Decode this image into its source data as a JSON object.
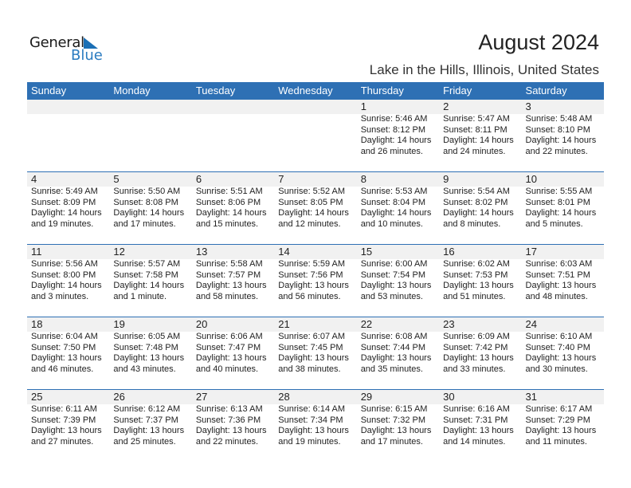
{
  "logo": {
    "line1": "General",
    "line2": "Blue"
  },
  "header": {
    "title": "August 2024",
    "location": "Lake in the Hills, Illinois, United States"
  },
  "colors": {
    "header_bg": "#2e70b4",
    "date_strip": "#f1f1f1",
    "logo_blue": "#2a7bc0"
  },
  "weekdays": [
    "Sunday",
    "Monday",
    "Tuesday",
    "Wednesday",
    "Thursday",
    "Friday",
    "Saturday"
  ],
  "weeks": [
    [
      null,
      null,
      null,
      null,
      {
        "day": "1",
        "sunrise": "Sunrise: 5:46 AM",
        "sunset": "Sunset: 8:12 PM",
        "daylight1": "Daylight: 14 hours",
        "daylight2": "and 26 minutes."
      },
      {
        "day": "2",
        "sunrise": "Sunrise: 5:47 AM",
        "sunset": "Sunset: 8:11 PM",
        "daylight1": "Daylight: 14 hours",
        "daylight2": "and 24 minutes."
      },
      {
        "day": "3",
        "sunrise": "Sunrise: 5:48 AM",
        "sunset": "Sunset: 8:10 PM",
        "daylight1": "Daylight: 14 hours",
        "daylight2": "and 22 minutes."
      }
    ],
    [
      {
        "day": "4",
        "sunrise": "Sunrise: 5:49 AM",
        "sunset": "Sunset: 8:09 PM",
        "daylight1": "Daylight: 14 hours",
        "daylight2": "and 19 minutes."
      },
      {
        "day": "5",
        "sunrise": "Sunrise: 5:50 AM",
        "sunset": "Sunset: 8:08 PM",
        "daylight1": "Daylight: 14 hours",
        "daylight2": "and 17 minutes."
      },
      {
        "day": "6",
        "sunrise": "Sunrise: 5:51 AM",
        "sunset": "Sunset: 8:06 PM",
        "daylight1": "Daylight: 14 hours",
        "daylight2": "and 15 minutes."
      },
      {
        "day": "7",
        "sunrise": "Sunrise: 5:52 AM",
        "sunset": "Sunset: 8:05 PM",
        "daylight1": "Daylight: 14 hours",
        "daylight2": "and 12 minutes."
      },
      {
        "day": "8",
        "sunrise": "Sunrise: 5:53 AM",
        "sunset": "Sunset: 8:04 PM",
        "daylight1": "Daylight: 14 hours",
        "daylight2": "and 10 minutes."
      },
      {
        "day": "9",
        "sunrise": "Sunrise: 5:54 AM",
        "sunset": "Sunset: 8:02 PM",
        "daylight1": "Daylight: 14 hours",
        "daylight2": "and 8 minutes."
      },
      {
        "day": "10",
        "sunrise": "Sunrise: 5:55 AM",
        "sunset": "Sunset: 8:01 PM",
        "daylight1": "Daylight: 14 hours",
        "daylight2": "and 5 minutes."
      }
    ],
    [
      {
        "day": "11",
        "sunrise": "Sunrise: 5:56 AM",
        "sunset": "Sunset: 8:00 PM",
        "daylight1": "Daylight: 14 hours",
        "daylight2": "and 3 minutes."
      },
      {
        "day": "12",
        "sunrise": "Sunrise: 5:57 AM",
        "sunset": "Sunset: 7:58 PM",
        "daylight1": "Daylight: 14 hours",
        "daylight2": "and 1 minute."
      },
      {
        "day": "13",
        "sunrise": "Sunrise: 5:58 AM",
        "sunset": "Sunset: 7:57 PM",
        "daylight1": "Daylight: 13 hours",
        "daylight2": "and 58 minutes."
      },
      {
        "day": "14",
        "sunrise": "Sunrise: 5:59 AM",
        "sunset": "Sunset: 7:56 PM",
        "daylight1": "Daylight: 13 hours",
        "daylight2": "and 56 minutes."
      },
      {
        "day": "15",
        "sunrise": "Sunrise: 6:00 AM",
        "sunset": "Sunset: 7:54 PM",
        "daylight1": "Daylight: 13 hours",
        "daylight2": "and 53 minutes."
      },
      {
        "day": "16",
        "sunrise": "Sunrise: 6:02 AM",
        "sunset": "Sunset: 7:53 PM",
        "daylight1": "Daylight: 13 hours",
        "daylight2": "and 51 minutes."
      },
      {
        "day": "17",
        "sunrise": "Sunrise: 6:03 AM",
        "sunset": "Sunset: 7:51 PM",
        "daylight1": "Daylight: 13 hours",
        "daylight2": "and 48 minutes."
      }
    ],
    [
      {
        "day": "18",
        "sunrise": "Sunrise: 6:04 AM",
        "sunset": "Sunset: 7:50 PM",
        "daylight1": "Daylight: 13 hours",
        "daylight2": "and 46 minutes."
      },
      {
        "day": "19",
        "sunrise": "Sunrise: 6:05 AM",
        "sunset": "Sunset: 7:48 PM",
        "daylight1": "Daylight: 13 hours",
        "daylight2": "and 43 minutes."
      },
      {
        "day": "20",
        "sunrise": "Sunrise: 6:06 AM",
        "sunset": "Sunset: 7:47 PM",
        "daylight1": "Daylight: 13 hours",
        "daylight2": "and 40 minutes."
      },
      {
        "day": "21",
        "sunrise": "Sunrise: 6:07 AM",
        "sunset": "Sunset: 7:45 PM",
        "daylight1": "Daylight: 13 hours",
        "daylight2": "and 38 minutes."
      },
      {
        "day": "22",
        "sunrise": "Sunrise: 6:08 AM",
        "sunset": "Sunset: 7:44 PM",
        "daylight1": "Daylight: 13 hours",
        "daylight2": "and 35 minutes."
      },
      {
        "day": "23",
        "sunrise": "Sunrise: 6:09 AM",
        "sunset": "Sunset: 7:42 PM",
        "daylight1": "Daylight: 13 hours",
        "daylight2": "and 33 minutes."
      },
      {
        "day": "24",
        "sunrise": "Sunrise: 6:10 AM",
        "sunset": "Sunset: 7:40 PM",
        "daylight1": "Daylight: 13 hours",
        "daylight2": "and 30 minutes."
      }
    ],
    [
      {
        "day": "25",
        "sunrise": "Sunrise: 6:11 AM",
        "sunset": "Sunset: 7:39 PM",
        "daylight1": "Daylight: 13 hours",
        "daylight2": "and 27 minutes."
      },
      {
        "day": "26",
        "sunrise": "Sunrise: 6:12 AM",
        "sunset": "Sunset: 7:37 PM",
        "daylight1": "Daylight: 13 hours",
        "daylight2": "and 25 minutes."
      },
      {
        "day": "27",
        "sunrise": "Sunrise: 6:13 AM",
        "sunset": "Sunset: 7:36 PM",
        "daylight1": "Daylight: 13 hours",
        "daylight2": "and 22 minutes."
      },
      {
        "day": "28",
        "sunrise": "Sunrise: 6:14 AM",
        "sunset": "Sunset: 7:34 PM",
        "daylight1": "Daylight: 13 hours",
        "daylight2": "and 19 minutes."
      },
      {
        "day": "29",
        "sunrise": "Sunrise: 6:15 AM",
        "sunset": "Sunset: 7:32 PM",
        "daylight1": "Daylight: 13 hours",
        "daylight2": "and 17 minutes."
      },
      {
        "day": "30",
        "sunrise": "Sunrise: 6:16 AM",
        "sunset": "Sunset: 7:31 PM",
        "daylight1": "Daylight: 13 hours",
        "daylight2": "and 14 minutes."
      },
      {
        "day": "31",
        "sunrise": "Sunrise: 6:17 AM",
        "sunset": "Sunset: 7:29 PM",
        "daylight1": "Daylight: 13 hours",
        "daylight2": "and 11 minutes."
      }
    ]
  ]
}
